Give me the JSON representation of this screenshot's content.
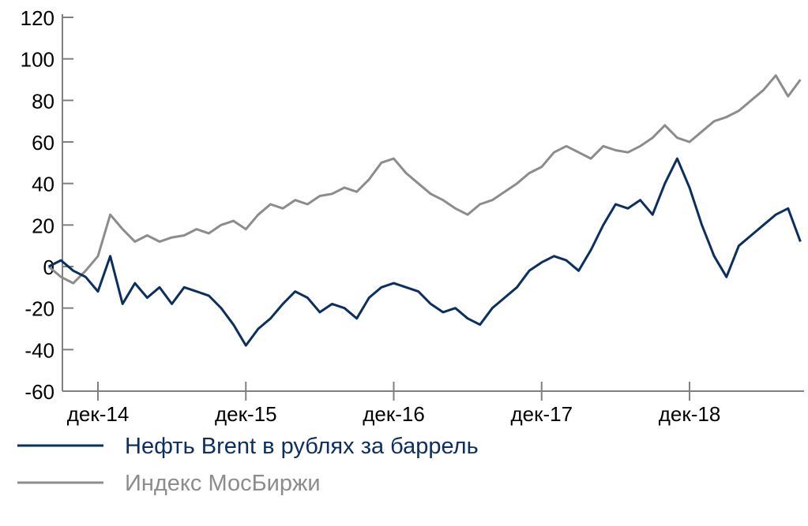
{
  "chart_data": {
    "type": "line",
    "title": "",
    "xlabel": "",
    "ylabel": "",
    "ylim": [
      -60,
      120
    ],
    "y_ticks": [
      -60,
      -40,
      -20,
      0,
      20,
      40,
      60,
      80,
      100,
      120
    ],
    "x_ticks": [
      {
        "label": "дек-14",
        "x": "2014-12"
      },
      {
        "label": "дек-15",
        "x": "2015-12"
      },
      {
        "label": "дек-16",
        "x": "2016-12"
      },
      {
        "label": "дек-17",
        "x": "2017-12"
      },
      {
        "label": "дек-18",
        "x": "2018-12"
      }
    ],
    "grid": false,
    "legend_position": "bottom-left",
    "series": [
      {
        "name": "Нефть Brent в рублях за баррель",
        "color": "#0b2f5e",
        "x": [
          "2014-08",
          "2014-09",
          "2014-10",
          "2014-11",
          "2014-12",
          "2015-01",
          "2015-02",
          "2015-03",
          "2015-04",
          "2015-05",
          "2015-06",
          "2015-07",
          "2015-08",
          "2015-09",
          "2015-10",
          "2015-11",
          "2015-12",
          "2016-01",
          "2016-02",
          "2016-03",
          "2016-04",
          "2016-05",
          "2016-06",
          "2016-07",
          "2016-08",
          "2016-09",
          "2016-10",
          "2016-11",
          "2016-12",
          "2017-01",
          "2017-02",
          "2017-03",
          "2017-04",
          "2017-05",
          "2017-06",
          "2017-07",
          "2017-08",
          "2017-09",
          "2017-10",
          "2017-11",
          "2017-12",
          "2018-01",
          "2018-02",
          "2018-03",
          "2018-04",
          "2018-05",
          "2018-06",
          "2018-07",
          "2018-08",
          "2018-09",
          "2018-10",
          "2018-11",
          "2018-12",
          "2019-01",
          "2019-02",
          "2019-03",
          "2019-04",
          "2019-05",
          "2019-06",
          "2019-07",
          "2019-08",
          "2019-09"
        ],
        "values": [
          0,
          3,
          -2,
          -5,
          -12,
          5,
          -18,
          -8,
          -15,
          -10,
          -18,
          -10,
          -12,
          -14,
          -20,
          -28,
          -38,
          -30,
          -25,
          -18,
          -12,
          -15,
          -22,
          -18,
          -20,
          -25,
          -15,
          -10,
          -8,
          -10,
          -12,
          -18,
          -22,
          -20,
          -25,
          -28,
          -20,
          -15,
          -10,
          -2,
          2,
          5,
          3,
          -2,
          8,
          20,
          30,
          28,
          32,
          25,
          40,
          52,
          38,
          20,
          5,
          -5,
          10,
          15,
          20,
          25,
          28,
          12
        ]
      },
      {
        "name": "Индекс МосБиржи",
        "color": "#8c8c8c",
        "x": [
          "2014-08",
          "2014-09",
          "2014-10",
          "2014-11",
          "2014-12",
          "2015-01",
          "2015-02",
          "2015-03",
          "2015-04",
          "2015-05",
          "2015-06",
          "2015-07",
          "2015-08",
          "2015-09",
          "2015-10",
          "2015-11",
          "2015-12",
          "2016-01",
          "2016-02",
          "2016-03",
          "2016-04",
          "2016-05",
          "2016-06",
          "2016-07",
          "2016-08",
          "2016-09",
          "2016-10",
          "2016-11",
          "2016-12",
          "2017-01",
          "2017-02",
          "2017-03",
          "2017-04",
          "2017-05",
          "2017-06",
          "2017-07",
          "2017-08",
          "2017-09",
          "2017-10",
          "2017-11",
          "2017-12",
          "2018-01",
          "2018-02",
          "2018-03",
          "2018-04",
          "2018-05",
          "2018-06",
          "2018-07",
          "2018-08",
          "2018-09",
          "2018-10",
          "2018-11",
          "2018-12",
          "2019-01",
          "2019-02",
          "2019-03",
          "2019-04",
          "2019-05",
          "2019-06",
          "2019-07",
          "2019-08",
          "2019-09"
        ],
        "values": [
          0,
          -5,
          -8,
          -2,
          5,
          25,
          18,
          12,
          15,
          12,
          14,
          15,
          18,
          16,
          20,
          22,
          18,
          25,
          30,
          28,
          32,
          30,
          34,
          35,
          38,
          36,
          42,
          50,
          52,
          45,
          40,
          35,
          32,
          28,
          25,
          30,
          32,
          36,
          40,
          45,
          48,
          55,
          58,
          55,
          52,
          58,
          56,
          55,
          58,
          62,
          68,
          62,
          60,
          65,
          70,
          72,
          75,
          80,
          85,
          92,
          82,
          90
        ]
      }
    ]
  }
}
